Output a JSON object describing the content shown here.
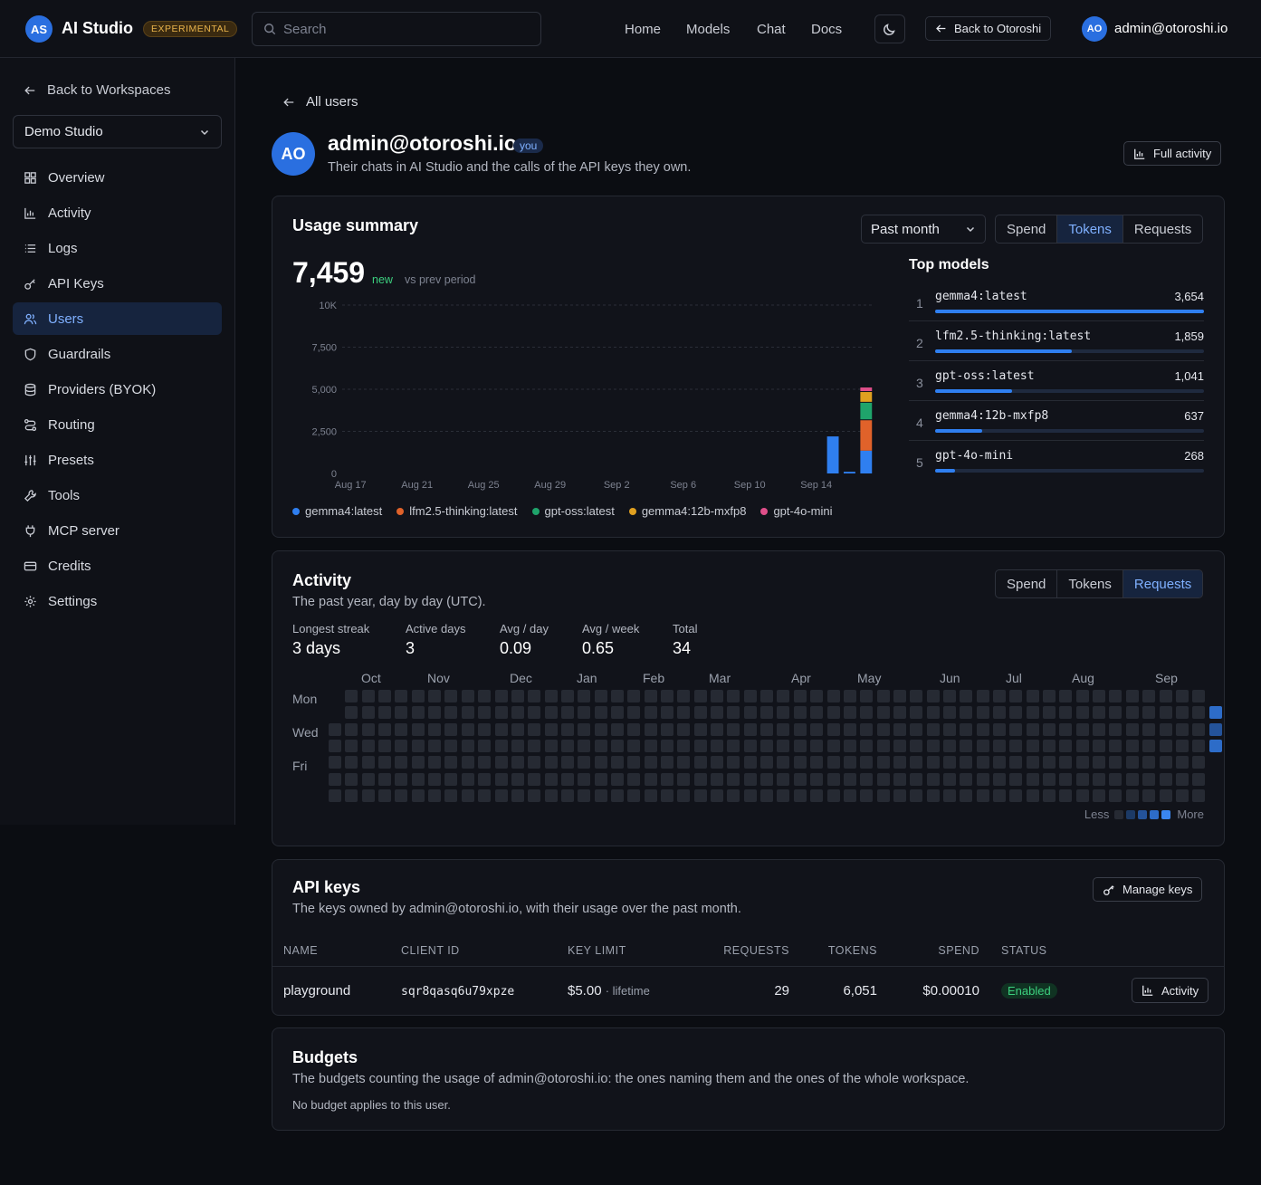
{
  "header": {
    "logo_initials": "AS",
    "app_title": "AI Studio",
    "experimental": "EXPERIMENTAL",
    "search_placeholder": "Search",
    "nav": [
      "Home",
      "Models",
      "Chat",
      "Docs"
    ],
    "back_label": "Back to Otoroshi",
    "user_initials": "AO",
    "user_email": "admin@otoroshi.io"
  },
  "sidebar": {
    "back_label": "Back to Workspaces",
    "workspace": "Demo Studio",
    "items": [
      {
        "label": "Overview",
        "icon": "grid-icon"
      },
      {
        "label": "Activity",
        "icon": "bar-chart-icon"
      },
      {
        "label": "Logs",
        "icon": "list-icon"
      },
      {
        "label": "API Keys",
        "icon": "key-icon"
      },
      {
        "label": "Users",
        "icon": "users-icon",
        "active": true
      },
      {
        "label": "Guardrails",
        "icon": "shield-icon"
      },
      {
        "label": "Providers (BYOK)",
        "icon": "database-icon"
      },
      {
        "label": "Routing",
        "icon": "routing-icon"
      },
      {
        "label": "Presets",
        "icon": "sliders-icon"
      },
      {
        "label": "Tools",
        "icon": "wrench-icon"
      },
      {
        "label": "MCP server",
        "icon": "plug-icon"
      },
      {
        "label": "Credits",
        "icon": "card-icon"
      },
      {
        "label": "Settings",
        "icon": "gear-icon"
      }
    ]
  },
  "page": {
    "back_label": "All users",
    "avatar_initials": "AO",
    "title": "admin@otoroshi.io",
    "you_badge": "you",
    "subtitle": "Their chats in AI Studio and the calls of the API keys they own.",
    "full_activity": "Full activity"
  },
  "usage": {
    "title": "Usage summary",
    "period": "Past month",
    "tabs": [
      "Spend",
      "Tokens",
      "Requests"
    ],
    "active_tab": "Tokens",
    "total": "7,459",
    "delta": "new",
    "delta_note": "vs prev period",
    "top_models_title": "Top models",
    "top_models": [
      {
        "rank": "1",
        "name": "gemma4:latest",
        "value": "3,654",
        "share": 1.0
      },
      {
        "rank": "2",
        "name": "lfm2.5-thinking:latest",
        "value": "1,859",
        "share": 0.509
      },
      {
        "rank": "3",
        "name": "gpt-oss:latest",
        "value": "1,041",
        "share": 0.285
      },
      {
        "rank": "4",
        "name": "gemma4:12b-mxfp8",
        "value": "637",
        "share": 0.174
      },
      {
        "rank": "5",
        "name": "gpt-4o-mini",
        "value": "268",
        "share": 0.073
      }
    ]
  },
  "chart_data": {
    "type": "bar",
    "stacked": true,
    "ylim": [
      0,
      10000
    ],
    "y_ticks": [
      "0",
      "2,500",
      "5,000",
      "7,500",
      "10K"
    ],
    "y_tick_values": [
      0,
      2500,
      5000,
      7500,
      10000
    ],
    "x_ticks": [
      "Aug 17",
      "Aug 21",
      "Aug 25",
      "Aug 29",
      "Sep 2",
      "Sep 6",
      "Sep 10",
      "Sep 14"
    ],
    "x_tick_index": [
      0,
      4,
      8,
      12,
      16,
      20,
      24,
      28
    ],
    "num_days": 32,
    "grid": true,
    "colors": [
      "#2f7ff0",
      "#e0622a",
      "#1fa46b",
      "#e0a020",
      "#e04f8a"
    ],
    "series": [
      {
        "name": "gemma4:latest",
        "values": {
          "29": 2200,
          "30": 100,
          "31": 1354
        }
      },
      {
        "name": "lfm2.5-thinking:latest",
        "values": {
          "31": 1859
        }
      },
      {
        "name": "gpt-oss:latest",
        "values": {
          "31": 1041
        }
      },
      {
        "name": "gemma4:12b-mxfp8",
        "values": {
          "31": 637
        }
      },
      {
        "name": "gpt-4o-mini",
        "values": {
          "31": 268
        }
      }
    ]
  },
  "activity": {
    "title": "Activity",
    "subtitle": "The past year, day by day (UTC).",
    "tabs": [
      "Spend",
      "Tokens",
      "Requests"
    ],
    "active_tab": "Requests",
    "stats": [
      {
        "label": "Longest streak",
        "value": "3 days"
      },
      {
        "label": "Active days",
        "value": "3"
      },
      {
        "label": "Avg / day",
        "value": "0.09"
      },
      {
        "label": "Avg / week",
        "value": "0.65"
      },
      {
        "label": "Total",
        "value": "34"
      }
    ],
    "months": [
      "Oct",
      "Nov",
      "Dec",
      "Jan",
      "Feb",
      "Mar",
      "Apr",
      "May",
      "Jun",
      "Jul",
      "Aug",
      "Sep"
    ],
    "days": [
      "Mon",
      "Wed",
      "Fri"
    ],
    "legend_less": "Less",
    "legend_more": "More",
    "active_cells": [
      {
        "week": 53,
        "day": 1,
        "level": 3
      },
      {
        "week": 53,
        "day": 2,
        "level": 2
      },
      {
        "week": 53,
        "day": 3,
        "level": 3
      }
    ]
  },
  "api_keys": {
    "title": "API keys",
    "subtitle": "The keys owned by admin@otoroshi.io, with their usage over the past month.",
    "manage_label": "Manage keys",
    "columns": [
      "NAME",
      "CLIENT ID",
      "KEY LIMIT",
      "REQUESTS",
      "TOKENS",
      "SPEND",
      "STATUS"
    ],
    "rows": [
      {
        "name": "playground",
        "client_id": "sqr8qasq6u79xpze",
        "limit": "$5.00",
        "limit_note": "· lifetime",
        "requests": "29",
        "tokens": "6,051",
        "spend": "$0.00010",
        "status": "Enabled",
        "action": "Activity"
      }
    ]
  },
  "budgets": {
    "title": "Budgets",
    "subtitle": "The budgets counting the usage of admin@otoroshi.io: the ones naming them and the ones of the whole workspace.",
    "empty": "No budget applies to this user."
  }
}
